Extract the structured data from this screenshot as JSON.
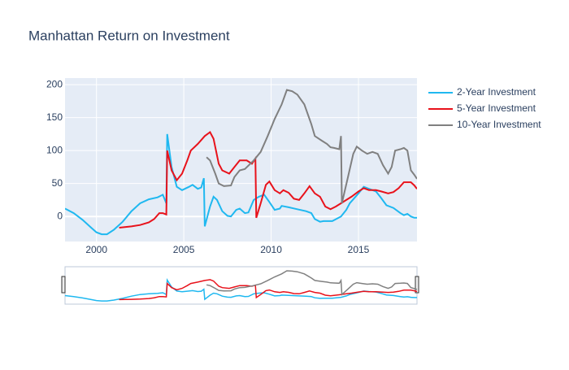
{
  "chart_data": {
    "type": "line",
    "title": "Manhattan Return on Investment",
    "xlim": [
      1998.2,
      2018.35
    ],
    "xticks": [
      2000,
      2005,
      2010,
      2015
    ],
    "ylim": [
      -38,
      210
    ],
    "yticks": [
      0,
      50,
      100,
      150,
      200
    ],
    "grid": true,
    "legend": "right",
    "rangeslider": true,
    "series": [
      {
        "name": "2-Year Investment",
        "color": "#1fb8f0",
        "x": [
          1998.2,
          1998.7,
          1999.2,
          1999.7,
          2000.0,
          2000.3,
          2000.6,
          2001.0,
          2001.5,
          2002.0,
          2002.5,
          2003.0,
          2003.5,
          2003.8,
          2004.0,
          2004.05,
          2004.3,
          2004.6,
          2004.9,
          2005.3,
          2005.5,
          2005.8,
          2006.0,
          2006.15,
          2006.2,
          2006.5,
          2006.7,
          2006.9,
          2007.2,
          2007.5,
          2007.7,
          2008.0,
          2008.2,
          2008.5,
          2008.7,
          2009.0,
          2009.3,
          2009.6,
          2009.9,
          2010.2,
          2010.5,
          2010.6,
          2011.0,
          2011.5,
          2012.0,
          2012.3,
          2012.5,
          2012.8,
          2013.0,
          2013.5,
          2014.0,
          2014.3,
          2014.5,
          2015.0,
          2015.3,
          2015.6,
          2016.0,
          2016.3,
          2016.6,
          2017.0,
          2017.4,
          2017.6,
          2017.8,
          2018.0,
          2018.2,
          2018.35
        ],
        "values": [
          12,
          5,
          -5,
          -17,
          -24,
          -27,
          -27,
          -20,
          -8,
          8,
          20,
          26,
          29,
          33,
          20,
          125,
          75,
          45,
          40,
          45,
          48,
          42,
          44,
          58,
          -15,
          15,
          30,
          25,
          8,
          1,
          0,
          10,
          12,
          5,
          6,
          25,
          30,
          33,
          22,
          10,
          12,
          16,
          14,
          11,
          8,
          5,
          -4,
          -8,
          -7,
          -7,
          0,
          10,
          20,
          35,
          45,
          42,
          38,
          28,
          17,
          13,
          5,
          2,
          4,
          0,
          -2,
          -2
        ]
      },
      {
        "name": "5-Year Investment",
        "color": "#e8121b",
        "x": [
          2001.3,
          2002.0,
          2002.5,
          2003.0,
          2003.3,
          2003.6,
          2003.8,
          2004.0,
          2004.05,
          2004.3,
          2004.6,
          2004.9,
          2005.2,
          2005.4,
          2005.8,
          2006.2,
          2006.5,
          2006.7,
          2007.0,
          2007.2,
          2007.6,
          2007.9,
          2008.2,
          2008.6,
          2008.9,
          2009.1,
          2009.15,
          2009.4,
          2009.7,
          2009.9,
          2010.2,
          2010.5,
          2010.7,
          2011.0,
          2011.3,
          2011.6,
          2011.9,
          2012.2,
          2012.5,
          2012.8,
          2013.1,
          2013.4,
          2013.7,
          2014.0,
          2014.3,
          2014.6,
          2015.0,
          2015.3,
          2015.6,
          2016.0,
          2016.3,
          2016.7,
          2017.0,
          2017.3,
          2017.6,
          2018.0,
          2018.2,
          2018.35
        ],
        "values": [
          -17,
          -15,
          -13,
          -9,
          -4,
          5,
          5,
          3,
          100,
          70,
          55,
          65,
          85,
          100,
          110,
          122,
          128,
          118,
          80,
          70,
          65,
          75,
          85,
          85,
          80,
          88,
          -2,
          20,
          48,
          53,
          40,
          35,
          40,
          36,
          27,
          25,
          35,
          46,
          35,
          30,
          15,
          11,
          15,
          20,
          25,
          30,
          38,
          43,
          40,
          40,
          38,
          35,
          37,
          43,
          52,
          52,
          47,
          42
        ]
      },
      {
        "name": "10-Year Investment",
        "color": "#808080",
        "x": [
          2006.3,
          2006.5,
          2006.8,
          2007.0,
          2007.3,
          2007.7,
          2007.9,
          2008.2,
          2008.5,
          2009.0,
          2009.4,
          2009.8,
          2010.2,
          2010.6,
          2010.9,
          2011.2,
          2011.5,
          2011.9,
          2012.3,
          2012.5,
          2012.9,
          2013.2,
          2013.4,
          2013.6,
          2013.9,
          2014.0,
          2014.05,
          2014.4,
          2014.7,
          2014.9,
          2015.2,
          2015.5,
          2015.8,
          2016.1,
          2016.4,
          2016.7,
          2016.9,
          2017.1,
          2017.4,
          2017.6,
          2017.8,
          2018.0,
          2018.2,
          2018.35
        ],
        "values": [
          90,
          85,
          65,
          50,
          46,
          47,
          60,
          70,
          72,
          85,
          98,
          122,
          148,
          170,
          192,
          190,
          185,
          170,
          140,
          122,
          115,
          110,
          105,
          104,
          102,
          122,
          20,
          60,
          95,
          106,
          100,
          95,
          98,
          95,
          78,
          65,
          75,
          100,
          102,
          104,
          100,
          70,
          63,
          57
        ]
      }
    ]
  }
}
